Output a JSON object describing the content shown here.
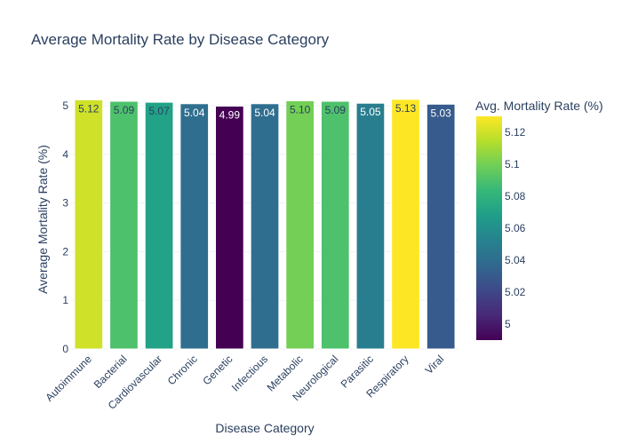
{
  "chart_data": {
    "type": "bar",
    "title": "Average Mortality Rate by Disease Category",
    "xlabel": "Disease Category",
    "ylabel": "Average Mortality Rate (%)",
    "ylim": [
      0,
      5.2
    ],
    "yticks": [
      0,
      1,
      2,
      3,
      4,
      5
    ],
    "grid": true,
    "categories": [
      "Autoimmune",
      "Bacterial",
      "Cardiovascular",
      "Chronic",
      "Genetic",
      "Infectious",
      "Metabolic",
      "Neurological",
      "Parasitic",
      "Respiratory",
      "Viral"
    ],
    "values": [
      5.12,
      5.09,
      5.07,
      5.04,
      4.99,
      5.04,
      5.1,
      5.09,
      5.05,
      5.13,
      5.03
    ],
    "value_labels": [
      "5.12",
      "5.09",
      "5.07",
      "5.04",
      "4.99",
      "5.04",
      "5.10",
      "5.09",
      "5.05",
      "5.13",
      "5.03"
    ],
    "colorscale": "Viridis",
    "colorbar": {
      "title": "Avg. Mortality Rate (%)",
      "range": [
        4.99,
        5.13
      ],
      "ticks": [
        5.0,
        5.02,
        5.04,
        5.06,
        5.08,
        5.1,
        5.12
      ],
      "tick_labels": [
        "5",
        "5.02",
        "5.04",
        "5.06",
        "5.08",
        "5.1",
        "5.12"
      ]
    }
  }
}
